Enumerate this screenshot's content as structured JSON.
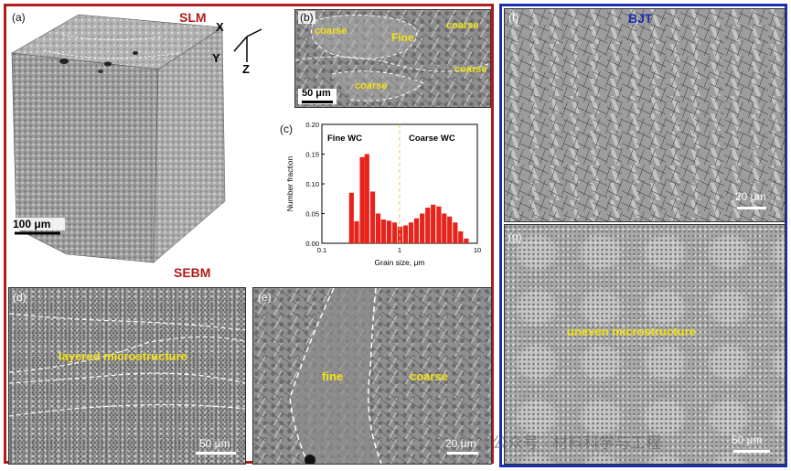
{
  "titles": {
    "slm": "SLM",
    "sebm": "SEBM",
    "bjt": "BJT"
  },
  "panels": {
    "a": {
      "label": "(a)",
      "scale": "100 μm",
      "axes": {
        "x": "X",
        "y": "Y",
        "z": "Z"
      }
    },
    "b": {
      "label": "(b)",
      "scale": "50 μm",
      "regions": [
        "coarse",
        "Fine",
        "coarse",
        "coarse",
        "coarse"
      ]
    },
    "c": {
      "label": "(c)"
    },
    "d": {
      "label": "(d)",
      "text": "layered microstructure",
      "scale": "50 μm"
    },
    "e": {
      "label": "(e)",
      "fine": "fine",
      "coarse": "coarse",
      "scale": "20 μm"
    },
    "f": {
      "label": "(f)",
      "scale": "20 μm"
    },
    "g": {
      "label": "(g)",
      "text": "uneven microstructure",
      "scale": "50 μm"
    }
  },
  "watermark": "公众号 · 材料科学与工程",
  "colors": {
    "slm_frame": "#b01c1c",
    "bjt_frame": "#1c2fb0",
    "bars": "#e8231c",
    "annotation": "#f4e21a",
    "divider": "#f0c64a"
  },
  "chart_data": {
    "type": "bar",
    "xlabel": "Grain size, μm",
    "ylabel": "Number fraction",
    "xscale": "log",
    "xlim": [
      0.1,
      10
    ],
    "ylim": [
      0,
      0.2
    ],
    "yticks": [
      "0.00",
      "0.05",
      "0.10",
      "0.15",
      "0.20"
    ],
    "xticks": [
      "0.1",
      "1",
      "10"
    ],
    "annotations": [
      "Fine WC",
      "Coarse WC"
    ],
    "divider_x": 1.0,
    "x": [
      0.24,
      0.28,
      0.33,
      0.38,
      0.45,
      0.53,
      0.62,
      0.73,
      0.86,
      1.01,
      1.19,
      1.4,
      1.65,
      1.95,
      2.3,
      2.7,
      3.2,
      3.75,
      4.4,
      5.2,
      6.1,
      7.2
    ],
    "values": [
      0.085,
      0.037,
      0.145,
      0.15,
      0.087,
      0.05,
      0.04,
      0.038,
      0.035,
      0.028,
      0.03,
      0.035,
      0.042,
      0.05,
      0.06,
      0.065,
      0.062,
      0.05,
      0.045,
      0.035,
      0.02,
      0.008
    ]
  }
}
